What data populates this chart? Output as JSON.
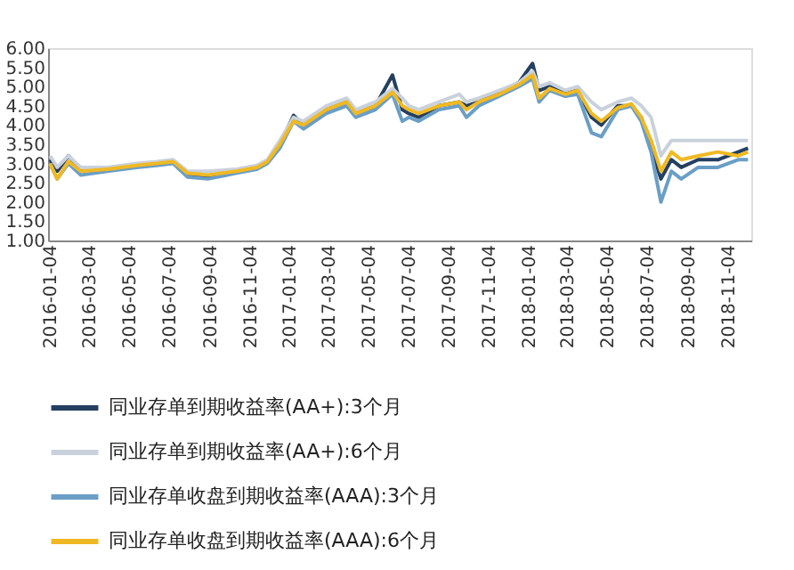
{
  "chart_data": {
    "type": "line",
    "x": [
      "2016-01-04",
      "2016-01-15",
      "2016-02-01",
      "2016-02-20",
      "2016-04-01",
      "2016-05-15",
      "2016-06-15",
      "2016-07-10",
      "2016-08-01",
      "2016-09-01",
      "2016-10-15",
      "2016-11-15",
      "2016-12-01",
      "2016-12-20",
      "2017-01-10",
      "2017-01-25",
      "2017-03-01",
      "2017-04-01",
      "2017-04-15",
      "2017-05-15",
      "2017-06-10",
      "2017-06-25",
      "2017-07-05",
      "2017-07-20",
      "2017-08-20",
      "2017-09-20",
      "2017-10-01",
      "2017-10-20",
      "2017-11-20",
      "2017-12-20",
      "2018-01-10",
      "2018-01-20",
      "2018-02-05",
      "2018-03-01",
      "2018-03-20",
      "2018-04-10",
      "2018-04-25",
      "2018-05-20",
      "2018-06-10",
      "2018-06-25",
      "2018-07-10",
      "2018-07-25",
      "2018-08-10",
      "2018-08-25",
      "2018-09-20",
      "2018-10-20",
      "2018-11-20",
      "2018-12-05"
    ],
    "series": [
      {
        "name": "同业存单到期收益率(AA+):3个月",
        "color": "#243f60",
        "values": [
          3.1,
          2.8,
          3.2,
          2.85,
          2.85,
          2.95,
          3.0,
          3.05,
          2.7,
          2.65,
          2.8,
          2.9,
          3.05,
          3.5,
          4.25,
          4.0,
          4.4,
          4.6,
          4.3,
          4.5,
          5.3,
          4.4,
          4.3,
          4.2,
          4.5,
          4.6,
          4.5,
          4.6,
          4.85,
          5.1,
          5.6,
          4.9,
          5.0,
          4.85,
          4.9,
          4.2,
          4.0,
          4.5,
          4.5,
          4.2,
          3.4,
          2.6,
          3.1,
          2.9,
          3.1,
          3.1,
          3.3,
          3.4
        ]
      },
      {
        "name": "同业存单到期收益率(AA+):6个月",
        "color": "#c9d1dc",
        "values": [
          3.2,
          2.9,
          3.2,
          2.9,
          2.9,
          3.0,
          3.05,
          3.1,
          2.8,
          2.8,
          2.85,
          2.95,
          3.1,
          3.6,
          4.2,
          4.1,
          4.5,
          4.7,
          4.4,
          4.6,
          4.95,
          4.7,
          4.5,
          4.4,
          4.6,
          4.8,
          4.6,
          4.7,
          4.9,
          5.1,
          5.4,
          5.0,
          5.1,
          4.9,
          5.0,
          4.6,
          4.4,
          4.6,
          4.7,
          4.5,
          4.2,
          3.2,
          3.6,
          3.6,
          3.6,
          3.6,
          3.6,
          3.6
        ]
      },
      {
        "name": "同业存单收盘到期收益率(AAA):3个月",
        "color": "#6a9ec6",
        "values": [
          3.0,
          2.6,
          3.0,
          2.7,
          2.8,
          2.9,
          2.95,
          3.0,
          2.65,
          2.6,
          2.75,
          2.85,
          3.0,
          3.4,
          4.1,
          3.9,
          4.3,
          4.5,
          4.2,
          4.4,
          4.8,
          4.1,
          4.2,
          4.1,
          4.4,
          4.5,
          4.2,
          4.5,
          4.75,
          5.0,
          5.2,
          4.6,
          4.9,
          4.75,
          4.8,
          3.8,
          3.7,
          4.4,
          4.5,
          4.1,
          3.3,
          2.0,
          2.8,
          2.6,
          2.9,
          2.9,
          3.1,
          3.1
        ]
      },
      {
        "name": "同业存单收盘到期收益率(AAA):6个月",
        "color": "#f0b923",
        "values": [
          3.0,
          2.6,
          3.05,
          2.8,
          2.85,
          2.95,
          3.0,
          3.05,
          2.75,
          2.7,
          2.8,
          2.9,
          3.05,
          3.5,
          4.1,
          4.0,
          4.4,
          4.6,
          4.3,
          4.5,
          4.85,
          4.5,
          4.4,
          4.3,
          4.5,
          4.6,
          4.4,
          4.6,
          4.8,
          5.05,
          5.3,
          4.7,
          4.95,
          4.8,
          4.9,
          4.3,
          4.1,
          4.45,
          4.55,
          4.2,
          3.6,
          2.8,
          3.3,
          3.1,
          3.2,
          3.3,
          3.2,
          3.3
        ]
      }
    ],
    "xlim": [
      "2016-01-01",
      "2018-12-10"
    ],
    "xticks": [
      "2016-01-04",
      "2016-03-04",
      "2016-05-04",
      "2016-07-04",
      "2016-09-04",
      "2016-11-04",
      "2017-01-04",
      "2017-03-04",
      "2017-05-04",
      "2017-07-04",
      "2017-09-04",
      "2017-11-04",
      "2018-01-04",
      "2018-03-04",
      "2018-05-04",
      "2018-07-04",
      "2018-09-04",
      "2018-11-04"
    ],
    "ylim": [
      1.0,
      6.0
    ],
    "yticks": [
      {
        "value": 1,
        "label": "1.00"
      },
      {
        "value": 1.5,
        "label": "1.50"
      },
      {
        "value": 2,
        "label": "2.00"
      },
      {
        "value": 2.5,
        "label": "2.50"
      },
      {
        "value": 3,
        "label": "3.00"
      },
      {
        "value": 3.5,
        "label": "3.50"
      },
      {
        "value": 4,
        "label": "4.00"
      },
      {
        "value": 4.5,
        "label": "4.50"
      },
      {
        "value": 5,
        "label": "5.00"
      },
      {
        "value": 5.5,
        "label": "5.50"
      },
      {
        "value": 6,
        "label": "6.00"
      }
    ],
    "grid": false,
    "legend": "bottom",
    "marker": "none",
    "line_style": "solid"
  }
}
